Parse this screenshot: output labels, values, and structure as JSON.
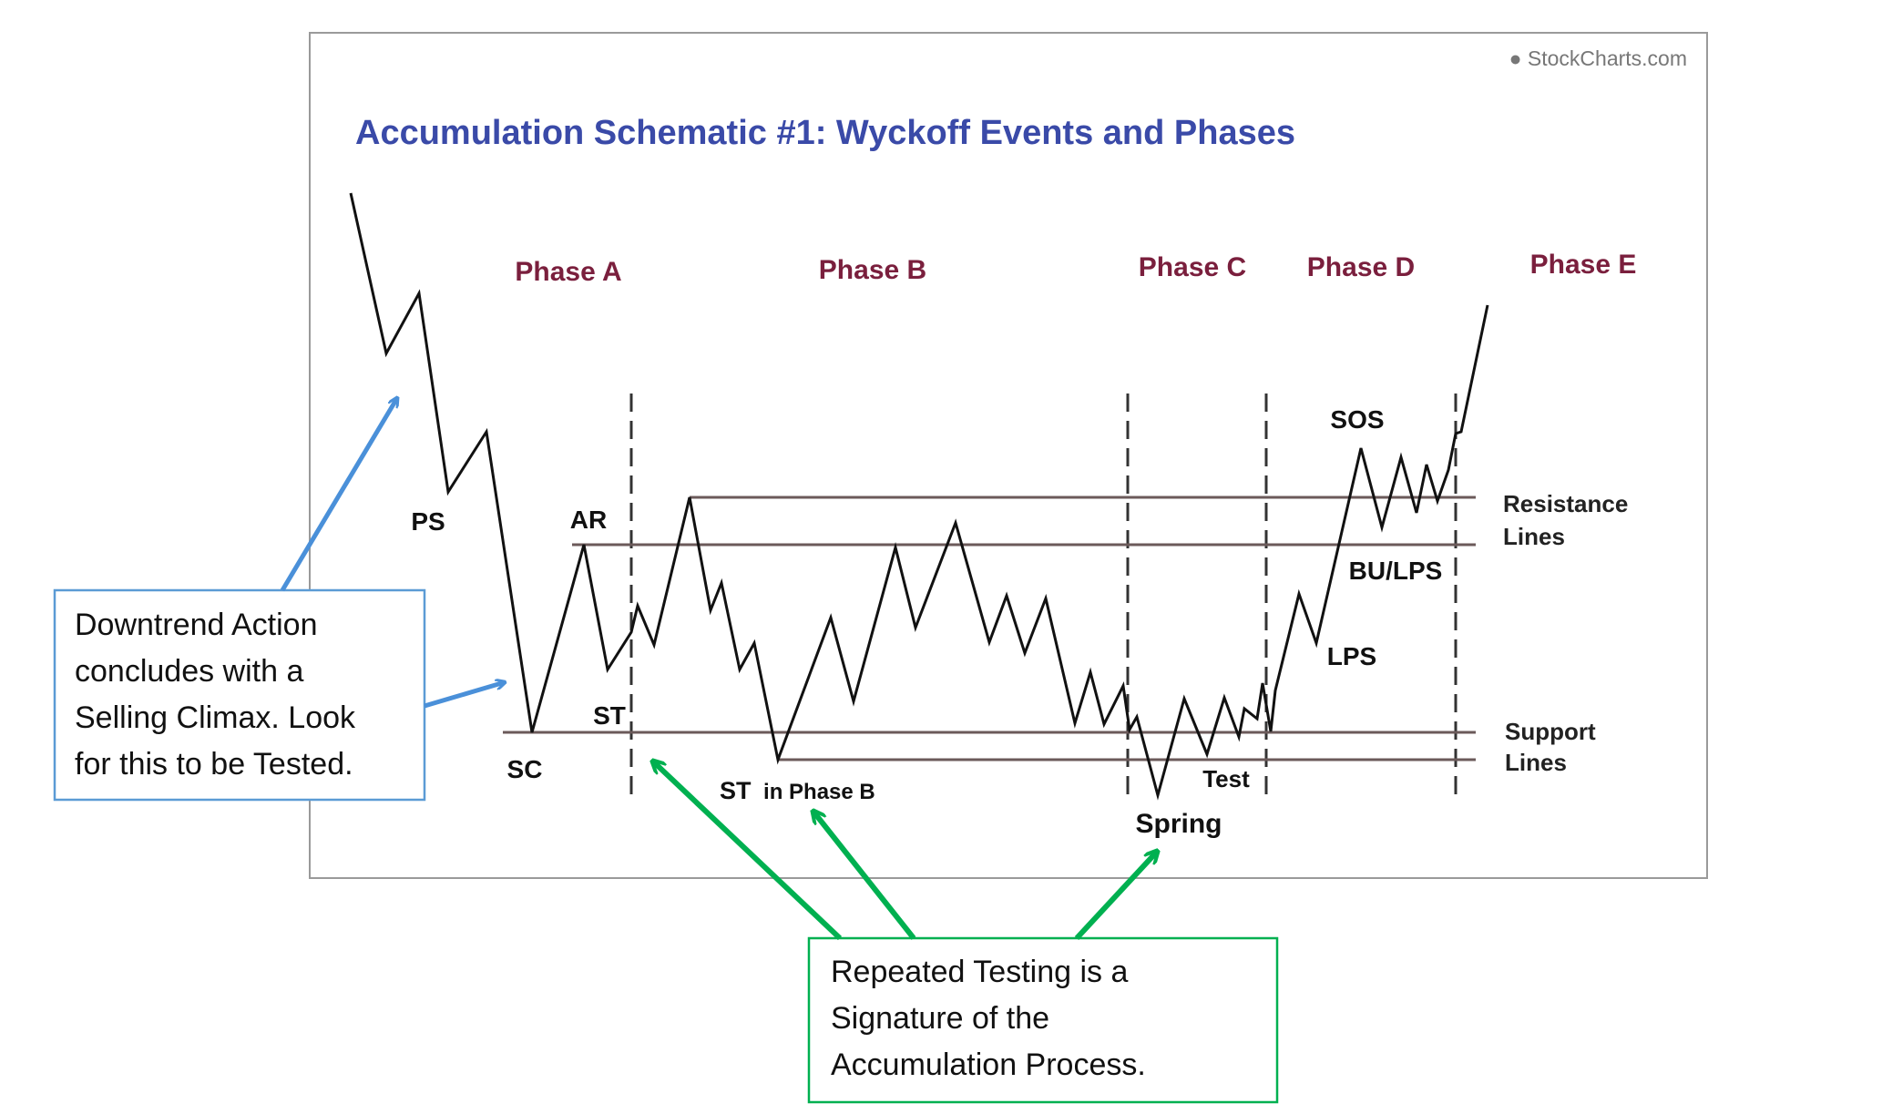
{
  "watermark": "● StockCharts.com",
  "title": "Accumulation Schematic #1: Wyckoff Events and Phases",
  "phases": {
    "a": "Phase A",
    "b": "Phase B",
    "c": "Phase C",
    "d": "Phase D",
    "e": "Phase E"
  },
  "events": {
    "ps": "PS",
    "sc": "SC",
    "ar": "AR",
    "st": "ST",
    "st_phase_b_prefix": "ST",
    "st_phase_b_suffix": "in Phase B",
    "spring": "Spring",
    "test": "Test",
    "lps": "LPS",
    "bu_lps": "BU/LPS",
    "sos": "SOS"
  },
  "line_labels": {
    "resistance_line1": "Resistance",
    "resistance_line2": "Lines",
    "support_line1": "Support",
    "support_line2": "Lines"
  },
  "callouts": {
    "downtrend": [
      "Downtrend Action",
      "concludes with a",
      "Selling Climax. Look",
      "for this to be Tested."
    ],
    "testing": [
      "Repeated Testing is a",
      "Signature of the",
      "Accumulation Process."
    ]
  },
  "colors": {
    "title": "#3a4aa8",
    "phase_label": "#7a1f3d",
    "event_label": "#111111",
    "price_line": "#111111",
    "level_line": "#6b5a5a",
    "phase_divider": "#333333",
    "frame": "#9a9a9a",
    "blue_arrow": "#4a90d9",
    "blue_box": "#5b9bd5",
    "green_arrow": "#00b050",
    "green_box": "#00b050",
    "watermark": "#777777"
  }
}
